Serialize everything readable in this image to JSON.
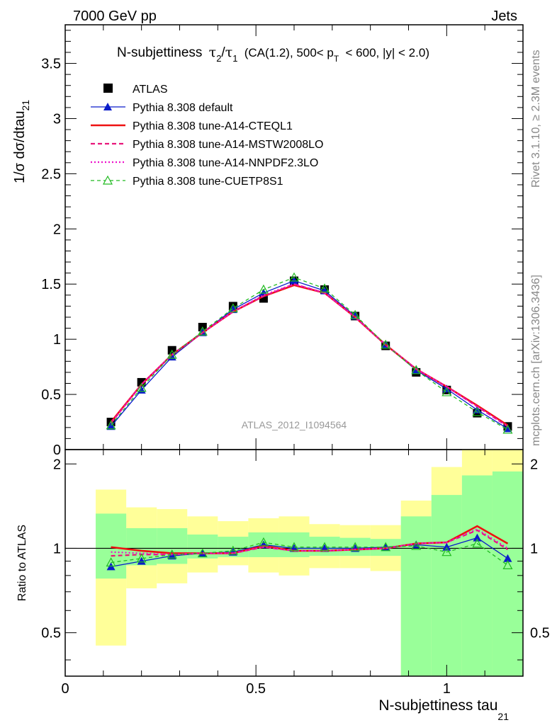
{
  "header": {
    "left": "7000 GeV pp",
    "right": "Jets",
    "title_main": "N-subjettiness",
    "title_tau2": "τ",
    "title_tau2_sub": "2",
    "title_slash": "/",
    "title_tau1": "τ",
    "title_tau1_sub": "1",
    "title_cond_a": "(CA(1.2), 500< p",
    "title_cond_sub": "T",
    "title_cond_b": "< 600, |y| < 2.0)",
    "analysis_id": "ATLAS_2012_I1094564",
    "rivet_label": "Rivet 3.1.10, ≥ 2.3M events",
    "mcplots_label": "mcplots.cern.ch [arXiv:1306.3436]"
  },
  "chart_data": {
    "type": "line",
    "xlabel": "N-subjettiness tau",
    "xlabel_sub": "21",
    "ylabel": "1/σ dσ/dtau",
    "ylabel_sub": "21",
    "ratio_ylabel": "Ratio to ATLAS",
    "xlim": [
      0,
      1.2
    ],
    "ylim": [
      0,
      3.85
    ],
    "ratio_ylim": [
      0.35,
      2.25
    ],
    "x_ticks": [
      "0",
      "0.5",
      "1"
    ],
    "x_tick_values": [
      0,
      0.5,
      1
    ],
    "y_ticks": [
      "0",
      "0.5",
      "1",
      "1.5",
      "2",
      "2.5",
      "3",
      "3.5"
    ],
    "y_tick_values": [
      0,
      0.5,
      1,
      1.5,
      2,
      2.5,
      3,
      3.5
    ],
    "ratio_ticks": [
      "0.5",
      "1",
      "2"
    ],
    "ratio_tick_values": [
      0.5,
      1,
      2
    ],
    "x": [
      0.12,
      0.2,
      0.28,
      0.36,
      0.44,
      0.52,
      0.6,
      0.68,
      0.76,
      0.84,
      0.92,
      1.0,
      1.08,
      1.16
    ],
    "bin_edges": [
      0.08,
      0.16,
      0.24,
      0.32,
      0.4,
      0.48,
      0.56,
      0.64,
      0.72,
      0.8,
      0.88,
      0.96,
      1.04,
      1.12,
      1.2
    ],
    "band_yellow": [
      [
        0.45,
        1.62
      ],
      [
        0.72,
        1.4
      ],
      [
        0.75,
        1.38
      ],
      [
        0.82,
        1.3
      ],
      [
        0.87,
        1.25
      ],
      [
        0.82,
        1.28
      ],
      [
        0.8,
        1.3
      ],
      [
        0.85,
        1.22
      ],
      [
        0.85,
        1.21
      ],
      [
        0.83,
        1.21
      ],
      [
        0.35,
        1.48
      ],
      [
        0.35,
        1.95
      ],
      [
        0.35,
        2.25
      ],
      [
        0.35,
        2.25
      ]
    ],
    "band_green": [
      [
        0.78,
        1.33
      ],
      [
        0.87,
        1.18
      ],
      [
        0.88,
        1.18
      ],
      [
        0.92,
        1.12
      ],
      [
        0.93,
        1.1
      ],
      [
        0.93,
        1.14
      ],
      [
        0.93,
        1.14
      ],
      [
        0.94,
        1.1
      ],
      [
        0.94,
        1.09
      ],
      [
        0.94,
        1.08
      ],
      [
        0.35,
        1.3
      ],
      [
        0.35,
        1.55
      ],
      [
        0.35,
        1.82
      ],
      [
        0.35,
        1.88
      ]
    ],
    "series": [
      {
        "name": "ATLAS",
        "color": "#000000",
        "style": "data",
        "values": [
          0.25,
          0.61,
          0.9,
          1.11,
          1.3,
          1.37,
          1.53,
          1.45,
          1.21,
          0.94,
          0.7,
          0.54,
          0.33,
          0.21
        ]
      },
      {
        "name": "Pythia 8.308 default",
        "color": "#0a1cc9",
        "style": "solid-tri",
        "values": [
          0.21,
          0.54,
          0.84,
          1.06,
          1.27,
          1.42,
          1.53,
          1.44,
          1.21,
          0.95,
          0.72,
          0.55,
          0.36,
          0.19
        ]
      },
      {
        "name": "Pythia 8.308 tune-A14-CTEQL1",
        "color": "#ee1111",
        "style": "solid-thick",
        "values": [
          0.25,
          0.59,
          0.86,
          1.06,
          1.25,
          1.39,
          1.49,
          1.42,
          1.2,
          0.95,
          0.73,
          0.57,
          0.4,
          0.22
        ]
      },
      {
        "name": "Pythia 8.308 tune-A14-MSTW2008LO",
        "color": "#e8157a",
        "style": "dashed",
        "values": [
          0.24,
          0.59,
          0.86,
          1.06,
          1.25,
          1.39,
          1.5,
          1.42,
          1.2,
          0.95,
          0.73,
          0.57,
          0.39,
          0.21
        ]
      },
      {
        "name": "Pythia 8.308 tune-A14-NNPDF2.3LO",
        "color": "#ee11cc",
        "style": "dotted",
        "values": [
          0.24,
          0.59,
          0.86,
          1.06,
          1.25,
          1.4,
          1.5,
          1.42,
          1.2,
          0.95,
          0.73,
          0.57,
          0.39,
          0.21
        ]
      },
      {
        "name": "Pythia 8.308 tune-CUETP8S1",
        "color": "#22bb22",
        "style": "dashed-tri",
        "values": [
          0.22,
          0.56,
          0.86,
          1.07,
          1.28,
          1.45,
          1.56,
          1.46,
          1.22,
          0.95,
          0.72,
          0.52,
          0.34,
          0.18
        ]
      }
    ],
    "ratios": [
      {
        "name": "Pythia 8.308 default",
        "values": [
          0.86,
          0.9,
          0.94,
          0.96,
          0.97,
          1.03,
          1.0,
          1.0,
          1.0,
          1.01,
          1.03,
          1.01,
          1.09,
          0.92
        ]
      },
      {
        "name": "Pythia 8.308 tune-A14-CTEQL1",
        "values": [
          1.01,
          0.98,
          0.96,
          0.96,
          0.96,
          1.02,
          0.98,
          0.98,
          0.99,
          1.0,
          1.04,
          1.05,
          1.2,
          1.04
        ]
      },
      {
        "name": "Pythia 8.308 tune-A14-MSTW2008LO",
        "values": [
          0.94,
          0.95,
          0.95,
          0.96,
          0.96,
          1.01,
          0.98,
          0.98,
          0.99,
          1.0,
          1.04,
          1.05,
          1.16,
          0.99
        ]
      },
      {
        "name": "Pythia 8.308 tune-A14-NNPDF2.3LO",
        "values": [
          0.97,
          0.96,
          0.95,
          0.96,
          0.96,
          1.01,
          0.98,
          0.98,
          0.99,
          1.0,
          1.04,
          1.05,
          1.17,
          1.0
        ]
      },
      {
        "name": "Pythia 8.308 tune-CUETP8S1",
        "values": [
          0.89,
          0.92,
          0.95,
          0.96,
          0.98,
          1.05,
          1.01,
          1.01,
          1.01,
          1.01,
          1.02,
          0.97,
          1.04,
          0.87
        ]
      }
    ],
    "legend_position": "top-left",
    "grid": false
  }
}
